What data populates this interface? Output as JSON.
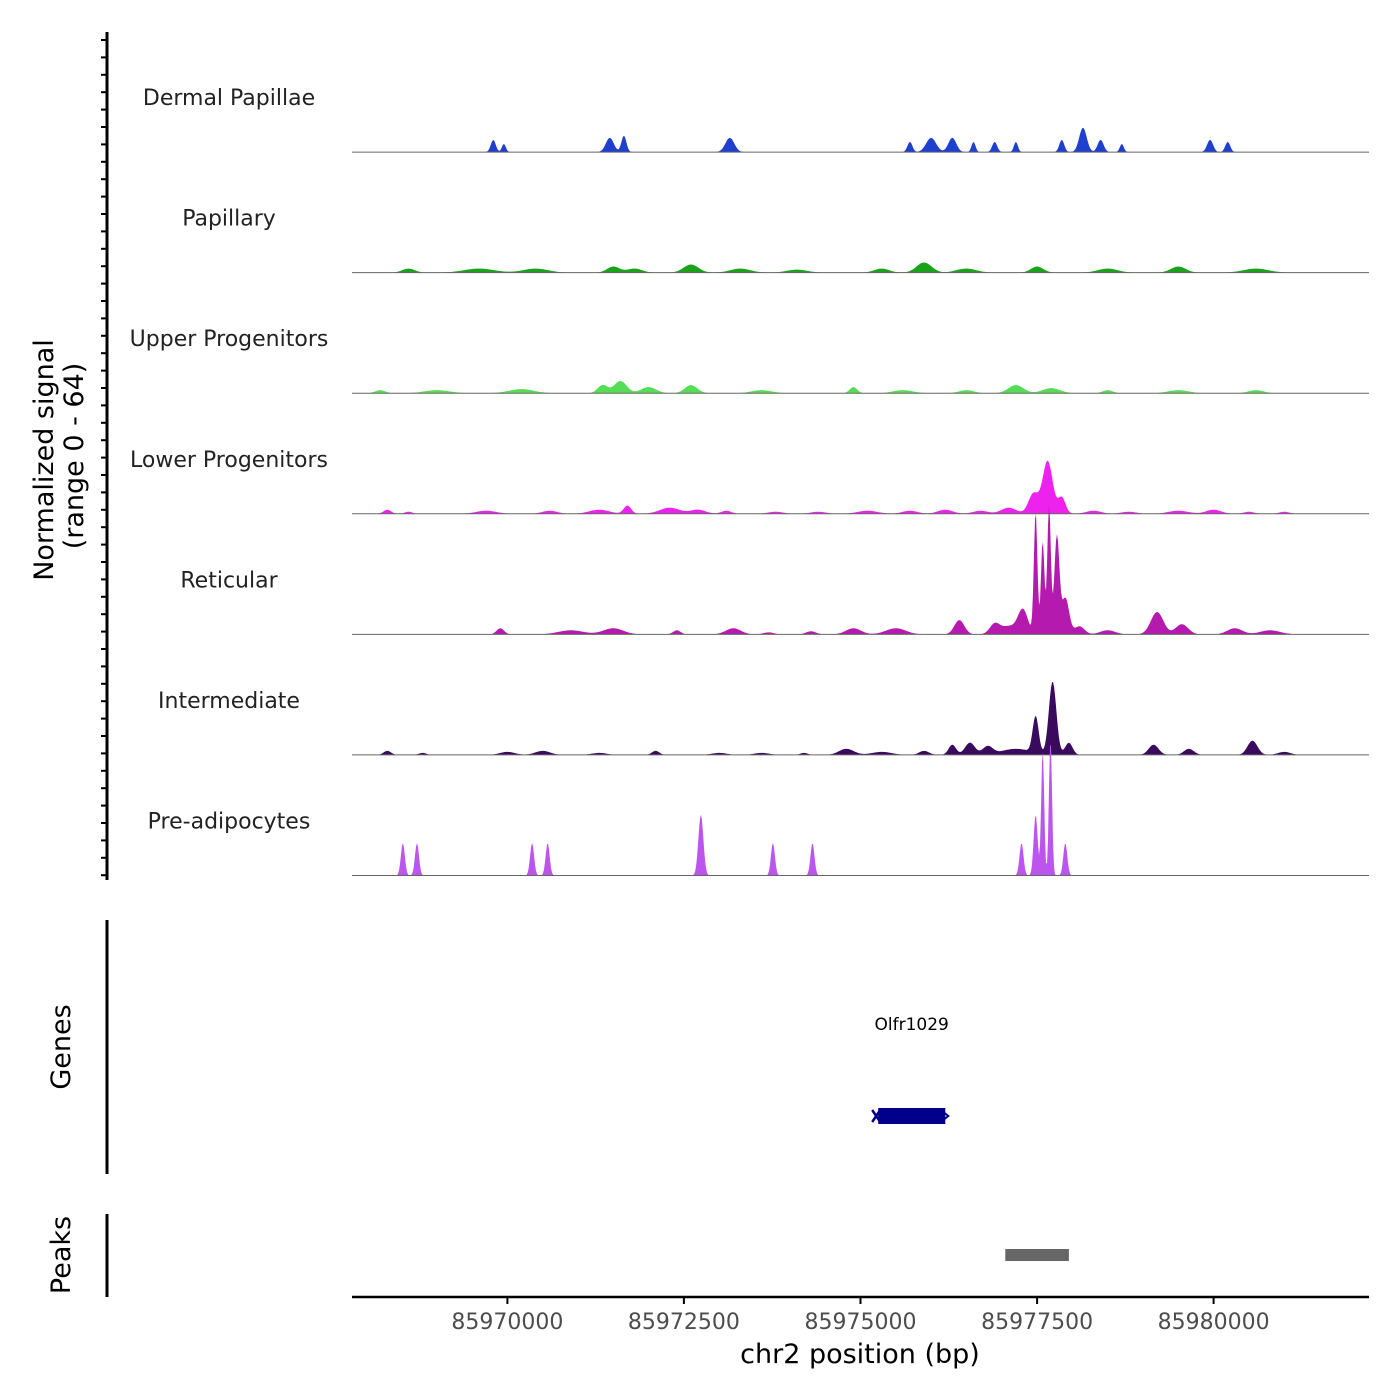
{
  "chart_data": {
    "type": "area",
    "title": "",
    "chromosome": "chr2",
    "xlabel": "chr2 position (bp)",
    "ylabel": "Normalized signal",
    "ylabel_range": "(range 0 - 64)",
    "xlim": [
      85967800,
      85982200
    ],
    "ylim": [
      0,
      64
    ],
    "x_ticks": [
      85970000,
      85972500,
      85975000,
      85977500,
      85980000
    ],
    "x_tick_labels": [
      "85970000",
      "85972500",
      "85975000",
      "85977500",
      "85980000"
    ],
    "tracks": [
      {
        "name": "Dermal Papillae",
        "color": "#1f3fcf",
        "peaks": [
          [
            85969800,
            100,
            6
          ],
          [
            85969950,
            80,
            4
          ],
          [
            85971450,
            160,
            7
          ],
          [
            85971650,
            100,
            8
          ],
          [
            85973150,
            180,
            7
          ],
          [
            85975700,
            100,
            5
          ],
          [
            85976000,
            200,
            7
          ],
          [
            85976300,
            160,
            7
          ],
          [
            85976600,
            80,
            5
          ],
          [
            85976900,
            100,
            5
          ],
          [
            85977200,
            80,
            5
          ],
          [
            85977850,
            100,
            6
          ],
          [
            85978150,
            150,
            12
          ],
          [
            85978400,
            120,
            6
          ],
          [
            85978700,
            80,
            4
          ],
          [
            85979950,
            120,
            6
          ],
          [
            85980200,
            100,
            5
          ]
        ]
      },
      {
        "name": "Papillary",
        "color": "#1aa31a",
        "peaks": [
          [
            85968600,
            250,
            2
          ],
          [
            85969600,
            600,
            2
          ],
          [
            85970400,
            500,
            2
          ],
          [
            85971500,
            250,
            3
          ],
          [
            85971800,
            300,
            2
          ],
          [
            85972600,
            300,
            4
          ],
          [
            85973300,
            400,
            2
          ],
          [
            85974100,
            400,
            1.5
          ],
          [
            85975300,
            300,
            2
          ],
          [
            85975900,
            300,
            5
          ],
          [
            85976500,
            400,
            2
          ],
          [
            85977500,
            250,
            3
          ],
          [
            85978500,
            400,
            2
          ],
          [
            85979500,
            300,
            3
          ],
          [
            85980600,
            500,
            2
          ]
        ]
      },
      {
        "name": "Upper Progenitors",
        "color": "#55dd55",
        "peaks": [
          [
            85968200,
            200,
            1.5
          ],
          [
            85969000,
            500,
            1.5
          ],
          [
            85970200,
            500,
            2
          ],
          [
            85971350,
            200,
            4
          ],
          [
            85971600,
            250,
            6
          ],
          [
            85972000,
            300,
            3
          ],
          [
            85972600,
            250,
            4
          ],
          [
            85973600,
            400,
            1.5
          ],
          [
            85974900,
            150,
            3
          ],
          [
            85975600,
            400,
            1.5
          ],
          [
            85976500,
            300,
            1.5
          ],
          [
            85977200,
            300,
            4
          ],
          [
            85977700,
            350,
            2.5
          ],
          [
            85978500,
            200,
            1.5
          ],
          [
            85979500,
            400,
            1.5
          ],
          [
            85980600,
            300,
            1.5
          ]
        ]
      },
      {
        "name": "Lower Progenitors",
        "color": "#ee22ee",
        "peaks": [
          [
            85968300,
            150,
            2
          ],
          [
            85968600,
            150,
            1
          ],
          [
            85969700,
            400,
            1.5
          ],
          [
            85970600,
            300,
            1.5
          ],
          [
            85971300,
            400,
            2
          ],
          [
            85971700,
            150,
            4
          ],
          [
            85972300,
            400,
            3
          ],
          [
            85972700,
            300,
            2
          ],
          [
            85973100,
            200,
            1.5
          ],
          [
            85973800,
            300,
            1
          ],
          [
            85974400,
            300,
            1
          ],
          [
            85975100,
            400,
            1.5
          ],
          [
            85975700,
            300,
            1.5
          ],
          [
            85976200,
            300,
            2
          ],
          [
            85976700,
            300,
            1.5
          ],
          [
            85977100,
            300,
            3
          ],
          [
            85977450,
            200,
            10
          ],
          [
            85977650,
            200,
            26
          ],
          [
            85977850,
            150,
            8
          ],
          [
            85978300,
            300,
            1.5
          ],
          [
            85978800,
            300,
            1
          ],
          [
            85979500,
            400,
            1.5
          ],
          [
            85980000,
            300,
            2
          ],
          [
            85980500,
            200,
            1
          ],
          [
            85981000,
            200,
            1
          ]
        ]
      },
      {
        "name": "Reticular",
        "color": "#b31aad",
        "peaks": [
          [
            85969900,
            150,
            3
          ],
          [
            85970900,
            500,
            2
          ],
          [
            85971500,
            400,
            3
          ],
          [
            85972400,
            150,
            2
          ],
          [
            85973200,
            300,
            3
          ],
          [
            85973700,
            200,
            1
          ],
          [
            85974300,
            200,
            1.5
          ],
          [
            85974900,
            300,
            3
          ],
          [
            85975500,
            400,
            3
          ],
          [
            85976400,
            200,
            7
          ],
          [
            85976900,
            200,
            5
          ],
          [
            85977100,
            300,
            4
          ],
          [
            85977300,
            200,
            12
          ],
          [
            85977480,
            70,
            60
          ],
          [
            85977580,
            70,
            46
          ],
          [
            85977670,
            70,
            64
          ],
          [
            85977780,
            100,
            48
          ],
          [
            85977900,
            150,
            18
          ],
          [
            85978100,
            200,
            4
          ],
          [
            85978500,
            300,
            2
          ],
          [
            85979200,
            250,
            11
          ],
          [
            85979550,
            250,
            5
          ],
          [
            85980300,
            300,
            3
          ],
          [
            85980800,
            400,
            2
          ]
        ]
      },
      {
        "name": "Intermediate",
        "color": "#3a0a5e",
        "peaks": [
          [
            85968300,
            150,
            2
          ],
          [
            85968800,
            150,
            1
          ],
          [
            85970000,
            300,
            1.5
          ],
          [
            85970500,
            300,
            2
          ],
          [
            85971300,
            300,
            1
          ],
          [
            85972100,
            150,
            2
          ],
          [
            85973000,
            300,
            1
          ],
          [
            85973600,
            300,
            1
          ],
          [
            85974200,
            150,
            1
          ],
          [
            85974800,
            300,
            3
          ],
          [
            85975300,
            400,
            1.5
          ],
          [
            85975900,
            200,
            2
          ],
          [
            85976300,
            150,
            5
          ],
          [
            85976550,
            200,
            6
          ],
          [
            85976800,
            200,
            4
          ],
          [
            85977200,
            600,
            3
          ],
          [
            85977480,
            120,
            18
          ],
          [
            85977720,
            150,
            36
          ],
          [
            85977950,
            150,
            6
          ],
          [
            85979150,
            200,
            5
          ],
          [
            85979650,
            200,
            3
          ],
          [
            85980550,
            200,
            7
          ],
          [
            85981000,
            250,
            1.5
          ]
        ]
      },
      {
        "name": "Pre-adipocytes",
        "color": "#bb55ee",
        "peaks": [
          [
            85968520,
            80,
            16
          ],
          [
            85968720,
            80,
            16
          ],
          [
            85970350,
            80,
            16
          ],
          [
            85970570,
            80,
            16
          ],
          [
            85972740,
            100,
            30
          ],
          [
            85973760,
            80,
            16
          ],
          [
            85974320,
            80,
            16
          ],
          [
            85977280,
            80,
            16
          ],
          [
            85977480,
            80,
            30
          ],
          [
            85977580,
            60,
            62
          ],
          [
            85977690,
            60,
            70
          ],
          [
            85977900,
            80,
            16
          ]
        ]
      }
    ],
    "genes_panel": {
      "label": "Genes",
      "genes": [
        {
          "name": "Olfr1029",
          "start": 85975250,
          "end": 85976200,
          "strand": "-",
          "color": "#00008b"
        }
      ]
    },
    "peaks_panel": {
      "label": "Peaks",
      "peaks": [
        {
          "start": 85977050,
          "end": 85977950,
          "color": "#666666"
        }
      ]
    }
  }
}
